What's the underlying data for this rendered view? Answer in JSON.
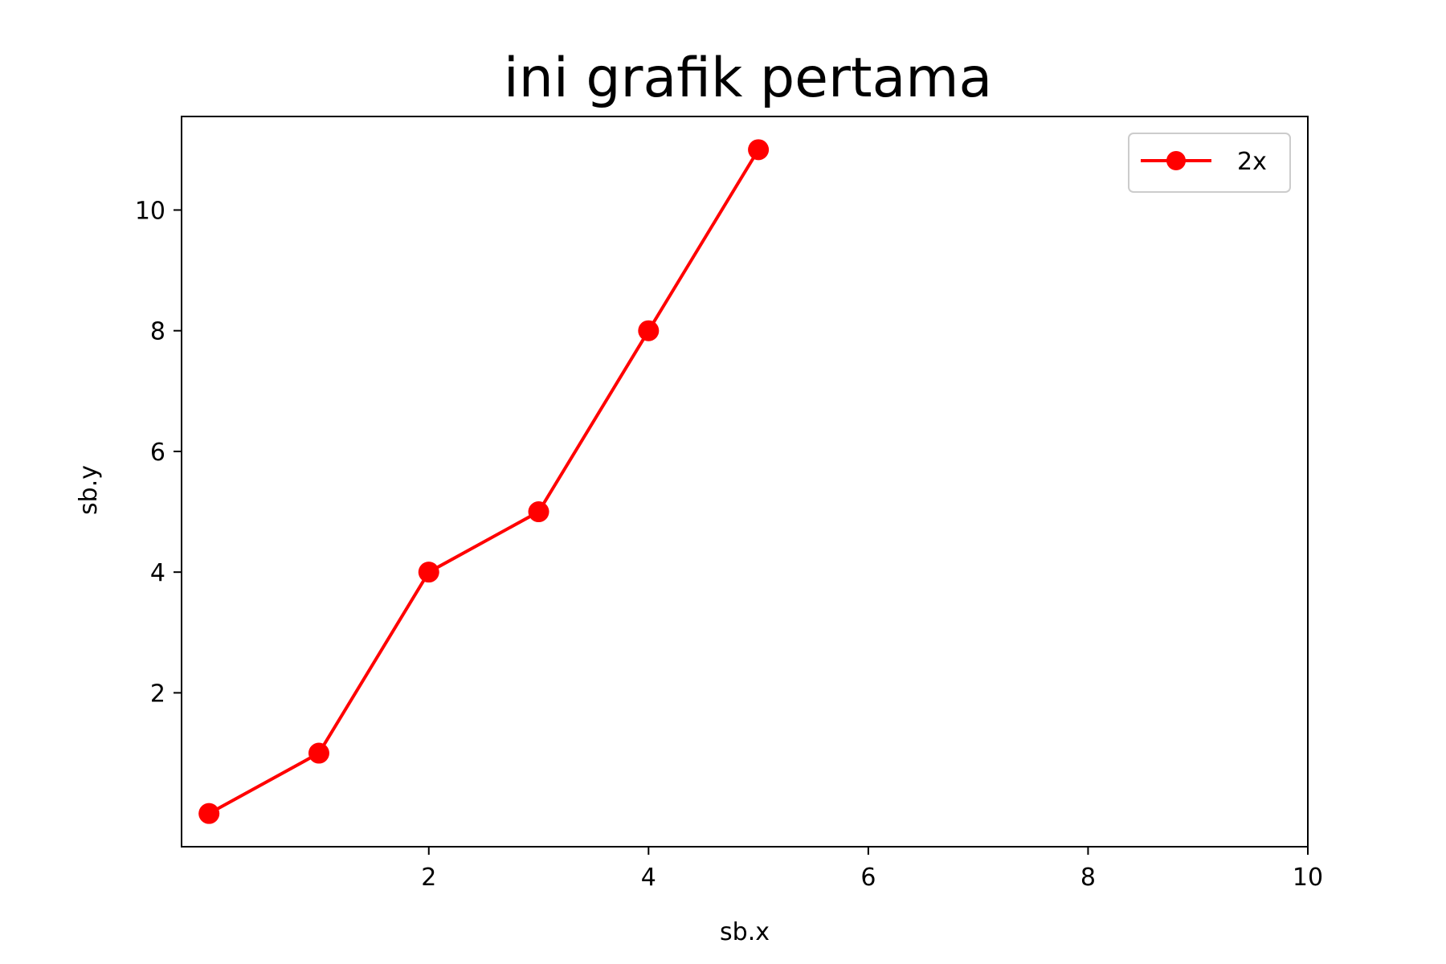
{
  "chart_data": {
    "type": "line",
    "title": "ini grafik pertama",
    "xlabel": "sb.x",
    "ylabel": "sb.y",
    "xlim": [
      -0.25,
      10
    ],
    "ylim": [
      -0.55,
      11.55
    ],
    "xticks": [
      2,
      4,
      6,
      8,
      10
    ],
    "yticks": [
      2,
      4,
      6,
      8,
      10
    ],
    "grid": false,
    "legend_position": "top-right",
    "series": [
      {
        "name": "2x",
        "color": "#ff0000",
        "marker": "circle",
        "x": [
          0,
          1,
          2,
          3,
          4,
          5
        ],
        "y": [
          0,
          1,
          4,
          5,
          8,
          11
        ]
      }
    ]
  }
}
